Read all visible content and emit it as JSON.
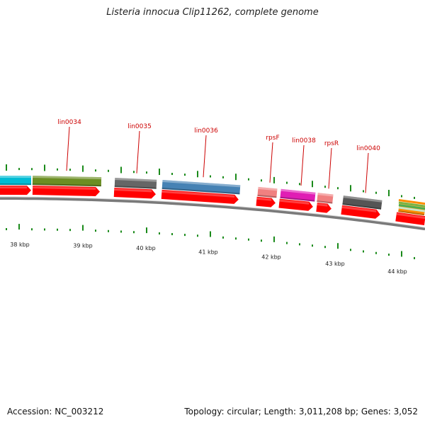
{
  "header": {
    "title": "Listeria innocua Clip11262, complete genome"
  },
  "footer": {
    "accession": "Accession: NC_003212",
    "summary": "Topology: circular; Length: 3,011,208 bp; Genes: 3,052"
  },
  "genes": [
    {
      "label": "",
      "color": "#00bcd4"
    },
    {
      "label": "lin0034",
      "color": "#6b8e23"
    },
    {
      "label": "lin0035",
      "color": "#666666"
    },
    {
      "label": "lin0036",
      "color": "#4682b4"
    },
    {
      "label": "rpsF",
      "color": "#f08080"
    },
    {
      "label": "lin0038",
      "color": "#e01eb4"
    },
    {
      "label": "rpsR",
      "color": "#f08080"
    },
    {
      "label": "lin0040",
      "color": "#555555"
    },
    {
      "label": "",
      "color": "#ff8c00"
    }
  ],
  "kbp_ticks": [
    "38 kbp",
    "39 kbp",
    "40 kbp",
    "41 kbp",
    "42 kbp",
    "43 kbp",
    "44 kbp"
  ],
  "colors": {
    "cds_strand": "#ff0000",
    "backbone": "#7a7a7a",
    "tick_mark": "#1a8a1a",
    "gene_label": "#cc0000",
    "ruler_label": "#222222"
  }
}
